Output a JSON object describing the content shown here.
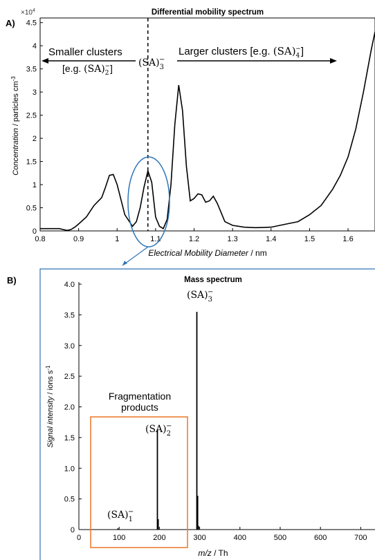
{
  "chart_data": [
    {
      "panel_label": "A)",
      "type": "line",
      "title": "Differential mobility spectrum",
      "xlabel_italic": "Electrical Mobility Diameter",
      "xlabel_unit": " / nm",
      "ylabel_italic": "Concentration",
      "ylabel_unit": " / particles cm",
      "ylabel_exp": "-3",
      "y_multiplier": "×10",
      "y_multiplier_exp": "4",
      "xlim": [
        0.8,
        1.67
      ],
      "ylim": [
        0,
        4.6
      ],
      "x_ticks": [
        "0.8",
        "0.9",
        "1",
        "1.1",
        "1.2",
        "1.3",
        "1.4",
        "1.5",
        "1.6"
      ],
      "y_ticks": [
        "0",
        "0.5",
        "1",
        "1.5",
        "2",
        "2.5",
        "3",
        "3.5",
        "4",
        "4.5"
      ],
      "x": [
        0.8,
        0.85,
        0.86,
        0.87,
        0.88,
        0.89,
        0.9,
        0.92,
        0.94,
        0.96,
        0.97,
        0.98,
        0.99,
        1.0,
        1.02,
        1.04,
        1.05,
        1.06,
        1.07,
        1.08,
        1.09,
        1.1,
        1.11,
        1.12,
        1.13,
        1.14,
        1.15,
        1.16,
        1.17,
        1.18,
        1.19,
        1.2,
        1.21,
        1.22,
        1.23,
        1.24,
        1.25,
        1.26,
        1.27,
        1.28,
        1.3,
        1.33,
        1.36,
        1.4,
        1.44,
        1.47,
        1.5,
        1.53,
        1.56,
        1.58,
        1.6,
        1.62,
        1.64,
        1.66,
        1.67
      ],
      "y": [
        0.05,
        0.05,
        0.03,
        0.01,
        0.03,
        0.08,
        0.15,
        0.3,
        0.55,
        0.72,
        0.95,
        1.2,
        1.22,
        1.0,
        0.35,
        0.1,
        0.2,
        0.5,
        0.95,
        1.3,
        1.05,
        0.3,
        0.1,
        0.05,
        0.25,
        1.0,
        2.3,
        3.15,
        2.6,
        1.4,
        0.65,
        0.7,
        0.8,
        0.78,
        0.62,
        0.65,
        0.75,
        0.6,
        0.4,
        0.2,
        0.12,
        0.08,
        0.07,
        0.08,
        0.15,
        0.2,
        0.35,
        0.55,
        0.9,
        1.2,
        1.6,
        2.2,
        3.0,
        3.9,
        4.3
      ],
      "annotations": {
        "center_label": "(SA)",
        "center_sub": "3",
        "center_sup": "−",
        "left_label": "Smaller clusters",
        "left_example_prefix": "[e.g. ",
        "left_example_formula": "(SA)",
        "left_example_sub": "2",
        "left_example_sup": "−",
        "left_example_suffix": "]",
        "right_label": "Larger clusters [e.g. ",
        "right_example_formula": "(SA)",
        "right_example_sub": "4",
        "right_example_sup": "−",
        "right_example_suffix": "]",
        "dashed_line_x": 1.08
      }
    },
    {
      "panel_label": "B)",
      "type": "bar",
      "title": "Mass spectrum",
      "xlabel_italic": "m/z",
      "xlabel_unit": " / Th",
      "ylabel_italic": "Signal intensity",
      "ylabel_unit": " / ions s",
      "ylabel_exp": "-1",
      "xlim": [
        0,
        720
      ],
      "ylim": [
        0,
        4.0
      ],
      "x_ticks": [
        "0",
        "100",
        "200",
        "300",
        "400",
        "500",
        "600",
        "700"
      ],
      "y_ticks": [
        "0",
        "0.5",
        "1.0",
        "1.5",
        "2.0",
        "2.5",
        "3.0",
        "3.5",
        "4.0"
      ],
      "peaks": [
        {
          "x": 97,
          "y": 0.02
        },
        {
          "x": 195,
          "y": 1.63
        },
        {
          "x": 197,
          "y": 0.17
        },
        {
          "x": 293,
          "y": 3.55
        },
        {
          "x": 295,
          "y": 0.55
        },
        {
          "x": 297,
          "y": 0.06
        }
      ],
      "annotations": {
        "box_title_line1": "Fragmentation",
        "box_title_line2": "products",
        "label1": "(SA)",
        "label1_sub": "1",
        "label1_sup": "−",
        "label2": "(SA)",
        "label2_sub": "2",
        "label2_sup": "−",
        "label3": "(SA)",
        "label3_sub": "3",
        "label3_sup": "−"
      }
    }
  ],
  "colors": {
    "line": "#000000",
    "ellipse": "#2e75b6",
    "box": "#ed7d31",
    "frame_b": "#2e75b6"
  }
}
